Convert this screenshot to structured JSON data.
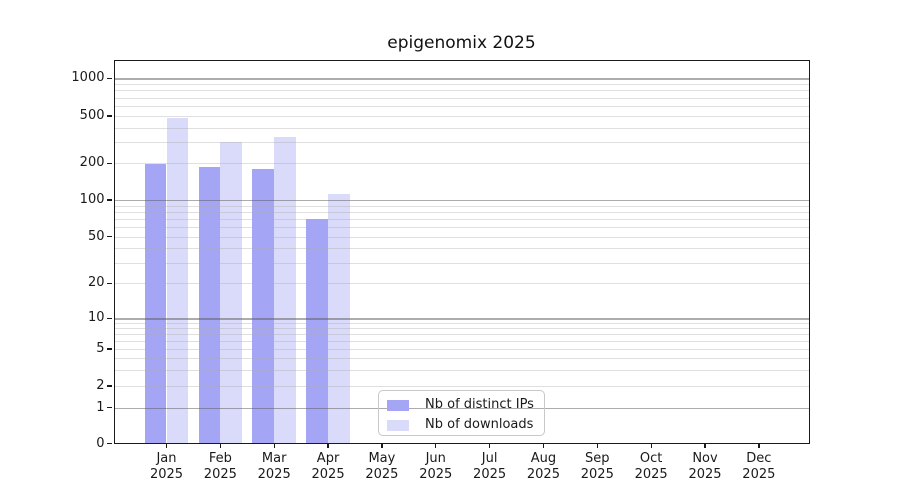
{
  "chart_data": {
    "type": "bar",
    "title": "epigenomix 2025",
    "xlabel": "",
    "ylabel": "",
    "x": {
      "months": [
        "Jan",
        "Feb",
        "Mar",
        "Apr",
        "May",
        "Jun",
        "Jul",
        "Aug",
        "Sep",
        "Oct",
        "Nov",
        "Dec"
      ],
      "year": "2025"
    },
    "y_axis": {
      "scale": "log-like",
      "ticks": [
        0,
        1,
        2,
        5,
        10,
        20,
        50,
        100,
        200,
        500,
        1000
      ],
      "range": [
        0,
        1000
      ]
    },
    "series": [
      {
        "name": "Nb of distinct IPs",
        "color": "#a5a5f5",
        "values": [
          196,
          185,
          178,
          70,
          0,
          0,
          0,
          0,
          0,
          0,
          0,
          0
        ]
      },
      {
        "name": "Nb of downloads",
        "color": "#dadafb",
        "values": [
          484,
          305,
          335,
          113,
          0,
          0,
          0,
          0,
          0,
          0,
          0,
          0
        ]
      }
    ],
    "legend": {
      "entries": [
        "Nb of distinct IPs",
        "Nb of downloads"
      ],
      "position": "bottom-center"
    },
    "grid": {
      "major_lines_at": [
        1,
        10,
        100,
        1000
      ],
      "minor_lines": "2-9 within each decade",
      "drawn_over_bars": true
    }
  }
}
